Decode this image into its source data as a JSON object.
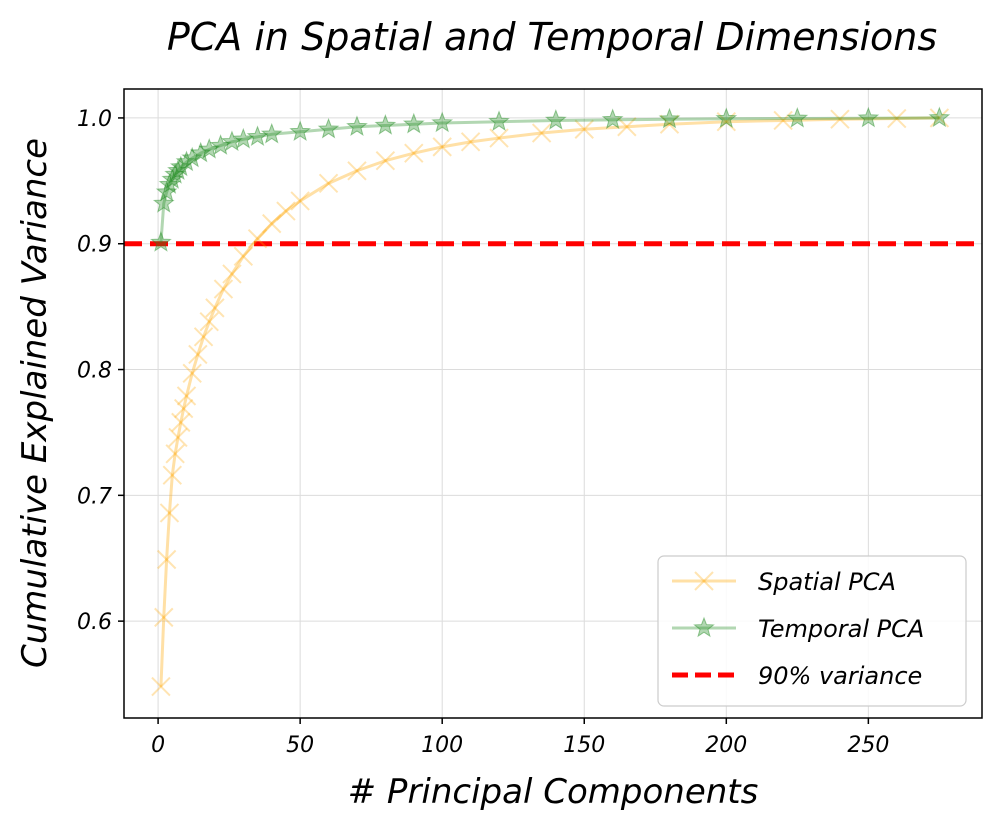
{
  "chart_data": {
    "type": "line",
    "title": "PCA in Spatial and Temporal Dimensions",
    "xlabel": "# Principal Components",
    "ylabel": "Cumulative Explained Variance",
    "xlim": [
      -12,
      290
    ],
    "ylim": [
      0.523,
      1.023
    ],
    "xticks": [
      0,
      50,
      100,
      150,
      200,
      250
    ],
    "xtick_labels": [
      "0",
      "50",
      "100",
      "150",
      "200",
      "250"
    ],
    "yticks": [
      0.6,
      0.7,
      0.8,
      0.9,
      1.0
    ],
    "ytick_labels": [
      "0.6",
      "0.7",
      "0.8",
      "0.9",
      "1.0"
    ],
    "grid": true,
    "legend_position": "lower-right",
    "threshold": {
      "name": "90% variance",
      "y": 0.9,
      "color": "#ff0000",
      "style": "dashed"
    },
    "series": [
      {
        "name": "Spatial PCA",
        "color": "#ffa500",
        "marker": "x",
        "x": [
          1,
          2,
          3,
          4,
          5,
          6,
          7,
          8,
          9,
          10,
          12,
          14,
          16,
          18,
          20,
          23,
          26,
          30,
          35,
          40,
          45,
          50,
          60,
          70,
          80,
          90,
          100,
          110,
          120,
          135,
          150,
          165,
          180,
          200,
          220,
          240,
          260,
          275
        ],
        "y": [
          0.548,
          0.603,
          0.649,
          0.686,
          0.716,
          0.733,
          0.746,
          0.758,
          0.769,
          0.779,
          0.797,
          0.812,
          0.826,
          0.838,
          0.849,
          0.864,
          0.876,
          0.89,
          0.904,
          0.916,
          0.926,
          0.934,
          0.948,
          0.958,
          0.966,
          0.972,
          0.977,
          0.981,
          0.984,
          0.988,
          0.991,
          0.993,
          0.995,
          0.997,
          0.998,
          0.999,
          0.9995,
          1.0
        ]
      },
      {
        "name": "Temporal PCA",
        "color": "#228b22",
        "marker": "star",
        "x": [
          1,
          2,
          3,
          4,
          5,
          6,
          7,
          8,
          10,
          12,
          15,
          18,
          22,
          26,
          30,
          35,
          40,
          50,
          60,
          70,
          80,
          90,
          100,
          120,
          140,
          160,
          180,
          200,
          225,
          250,
          275
        ],
        "y": [
          0.901,
          0.932,
          0.941,
          0.947,
          0.951,
          0.955,
          0.958,
          0.961,
          0.965,
          0.968,
          0.972,
          0.975,
          0.978,
          0.981,
          0.983,
          0.985,
          0.987,
          0.989,
          0.991,
          0.993,
          0.994,
          0.995,
          0.996,
          0.997,
          0.998,
          0.9985,
          0.999,
          0.9993,
          0.9996,
          0.9998,
          1.0
        ]
      }
    ]
  }
}
